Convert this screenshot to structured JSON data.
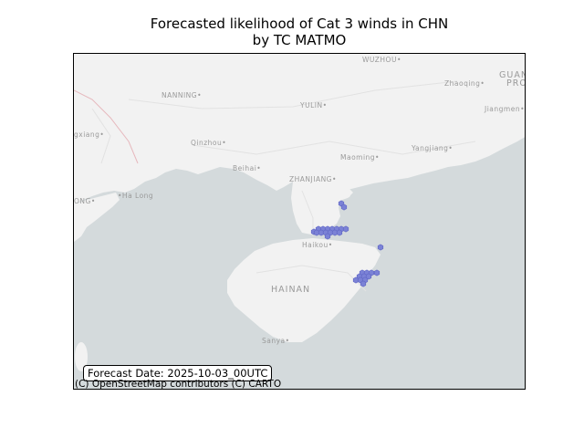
{
  "title": {
    "line1": "Forecasted likelihood of Cat 3 winds in CHN",
    "line2": "by TC MATMO"
  },
  "forecast_label": "Forecast Date: 2025-10-03_00UTC",
  "attribution": "(C) OpenStreetMap contributors (C) CARTO",
  "colors": {
    "sea": "#d4dadc",
    "land": "#f2f2f2",
    "hex_fill": "#7b82d6",
    "hex_edge": "#5c63c2"
  },
  "places": [
    {
      "id": "wuzhou",
      "label": "WUZHOU•"
    },
    {
      "id": "guan",
      "label": "GUAN"
    },
    {
      "id": "pro",
      "label": "PRO"
    },
    {
      "id": "zhaoqing",
      "label": "Zhaoqing•"
    },
    {
      "id": "nanning",
      "label": "NANNING•"
    },
    {
      "id": "yulin",
      "label": "YULIN•"
    },
    {
      "id": "jiangmen",
      "label": "Jiangmen•"
    },
    {
      "id": "gxiang",
      "label": "gxiang•"
    },
    {
      "id": "qinzhou",
      "label": "Qinzhou•"
    },
    {
      "id": "maoming",
      "label": "Maoming•"
    },
    {
      "id": "yangjiang",
      "label": "Yangjiang•"
    },
    {
      "id": "beihai",
      "label": "Beihai•"
    },
    {
      "id": "zhanjiang",
      "label": "ZHANJIANG•"
    },
    {
      "id": "ong",
      "label": "ONG•"
    },
    {
      "id": "halong",
      "label": "•Ha Long"
    },
    {
      "id": "haikou",
      "label": "Haikou•"
    },
    {
      "id": "hainan",
      "label": "HAINAN"
    },
    {
      "id": "sanya",
      "label": "Sanya•"
    }
  ]
}
